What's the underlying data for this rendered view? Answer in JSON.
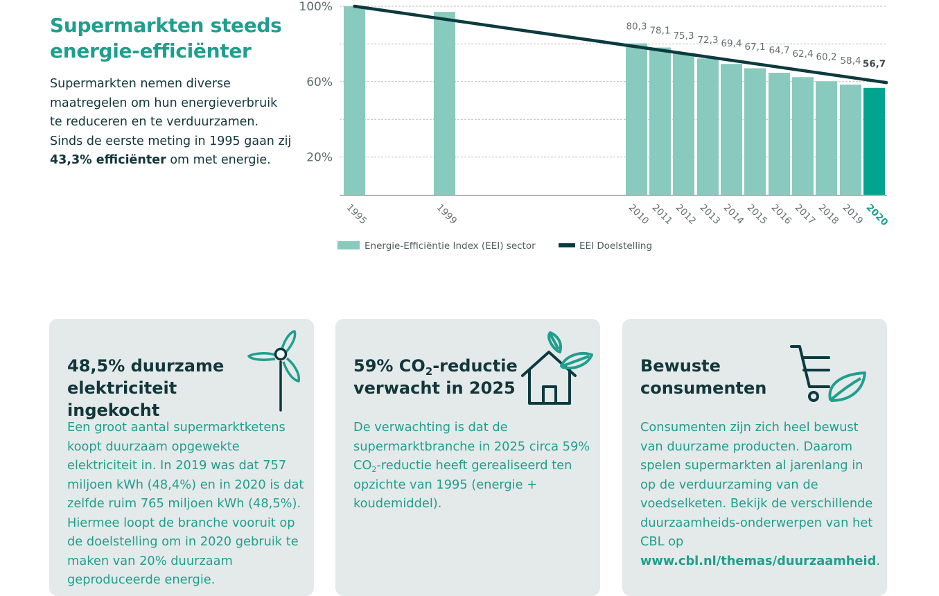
{
  "intro": {
    "title_line1": "Supermarkten steeds",
    "title_line2": "energie-efficiënter",
    "text_before": "Supermarkten nemen diverse maatregelen om hun energieverbruik te reduceren en te verduurzamen. Sinds de eerste meting in 1995 gaan zij ",
    "text_bold": "43,3% efficiënter",
    "text_after": " om met energie."
  },
  "chart_data": {
    "type": "bar",
    "categories": [
      "1995",
      "1999",
      "2010",
      "2011",
      "2012",
      "2013",
      "2014",
      "2015",
      "2016",
      "2017",
      "2018",
      "2019",
      "2020"
    ],
    "series": [
      {
        "name": "Energie-Efficiëntie Index (EEI) sector",
        "values": [
          100,
          97,
          80.3,
          78.1,
          75.3,
          72.3,
          69.4,
          67.1,
          64.7,
          62.4,
          60.2,
          58.4,
          56.7
        ],
        "labels": [
          "",
          "",
          "80,3",
          "78,1",
          "75,3",
          "72,3",
          "69,4",
          "67,1",
          "64,7",
          "62,4",
          "60,2",
          "58,4",
          "56,7"
        ]
      },
      {
        "name": "EEI Doelstelling",
        "type": "line",
        "x": [
          "1995",
          "2020"
        ],
        "values": [
          100,
          59.5
        ]
      }
    ],
    "y_ticks": [
      "100%",
      "60%",
      "20%"
    ],
    "y_tick_values": [
      100,
      60,
      20
    ],
    "ylim": [
      0,
      100
    ],
    "gridlines": [
      100,
      80,
      60,
      40,
      20
    ],
    "highlight_category": "2020",
    "colors": {
      "bar": "#88cabd",
      "bar_highlight": "#00a48f",
      "line": "#0c3a3f",
      "grid": "#b8bfc0"
    },
    "legend": {
      "position": "bottom-left",
      "items": [
        {
          "label": "Energie-Efficiëntie Index (EEI) sector",
          "color": "#88cabd",
          "kind": "swatch"
        },
        {
          "label": "EEI Doelstelling",
          "color": "#0c3a3f",
          "kind": "line"
        }
      ]
    }
  },
  "cards": [
    {
      "icon": "wind-turbine-icon",
      "title_line1": "48,5% duurzame",
      "title_line2": "elektriciteit ingekocht",
      "body": "Een groot aantal supermarktketens koopt duurzaam opgewekte elektriciteit in. In 2019 was dat 757 miljoen kWh (48,4%) en in 2020 is dat zelfde ruim 765 miljoen kWh (48,5%). Hiermee loopt de branche vooruit op de doelstelling om in 2020 gebruik te maken van 20% duurzaam geproduceerde energie."
    },
    {
      "icon": "eco-house-icon",
      "title_pre": "59% CO",
      "title_sub": "2",
      "title_post": "-reductie",
      "title_line2": "verwacht in 2025",
      "body_pre": "De verwachting is dat de supermarktbranche in 2025 circa 59% CO",
      "body_sub": "2",
      "body_post": "-reductie heeft gerealiseerd ten opzichte van 1995 (energie + koudemiddel)."
    },
    {
      "icon": "shopping-cart-leaf-icon",
      "title_line1": "Bewuste",
      "title_line2": "consumenten",
      "body_pre": "Consumenten zijn zich heel bewust van duurzame producten. Daarom spelen supermarkten al jarenlang in op de verduurzaming van de voedselketen. Bekijk de verschillende duurzaamheids-onderwerpen van het CBL op ",
      "body_link": "www.cbl.nl/themas/duurzaamheid",
      "body_end": "."
    }
  ]
}
